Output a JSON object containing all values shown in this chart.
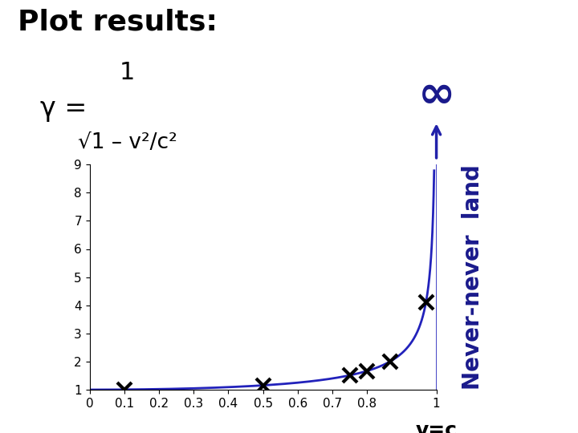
{
  "title": "Plot results:",
  "xlim": [
    0,
    1.0
  ],
  "ylim": [
    1,
    9
  ],
  "xticks": [
    0,
    0.1,
    0.2,
    0.3,
    0.4,
    0.5,
    0.6,
    0.7,
    0.8,
    1.0
  ],
  "xtick_labels": [
    "0",
    "0.1",
    "0.2",
    "0.3",
    "0.4",
    "0.5",
    "0.6",
    "0.7",
    "0.8",
    "1"
  ],
  "yticks": [
    1,
    2,
    3,
    4,
    5,
    6,
    7,
    8,
    9
  ],
  "ytick_labels": [
    "1",
    "2",
    "3",
    "4",
    "5",
    "6",
    "7",
    "8",
    "9"
  ],
  "data_x": [
    0.1,
    0.5,
    0.75,
    0.8,
    0.866,
    0.97
  ],
  "curve_color": "#2222bb",
  "marker_color": "#000000",
  "never_never_color": "#1a1a8c",
  "never_never_bg": "#cce8f4",
  "arrow_color": "#2222aa",
  "bg_color": "#ffffff",
  "title_fontsize": 26,
  "tick_fontsize": 11,
  "never_never_fontsize": 20,
  "inf_fontsize": 40,
  "vc_fontsize": 18
}
